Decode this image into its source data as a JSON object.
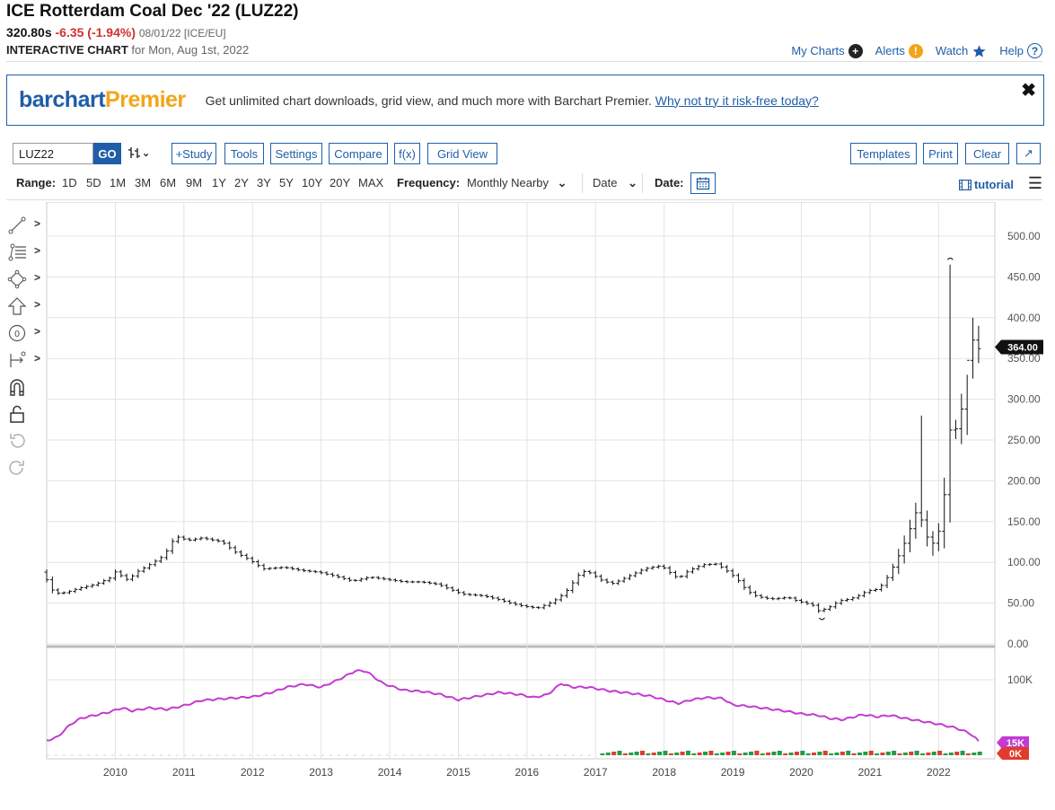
{
  "header": {
    "title": "ICE Rotterdam Coal Dec '22 (LUZ22)",
    "last": "320.80s",
    "change": "-6.35 (-1.94%)",
    "meta": "08/01/22 [ICE/EU]",
    "interactive": "INTERACTIVE CHART",
    "for_date": "for Mon, Aug 1st, 2022"
  },
  "top_links": {
    "my_charts": "My Charts",
    "alerts": "Alerts",
    "watch": "Watch",
    "help": "Help"
  },
  "promo": {
    "logo_a": "barchart",
    "logo_b": "Premier",
    "message": "Get unlimited chart downloads, grid view, and much more with Barchart Premier.",
    "link": "Why not try it risk-free today?",
    "close": "✖"
  },
  "toolbar": {
    "symbol": "LUZ22",
    "go": "GO",
    "study": "+Study",
    "tools": "Tools",
    "settings": "Settings",
    "compare": "Compare",
    "fx": "f(x)",
    "grid_view": "Grid View",
    "templates": "Templates",
    "print": "Print",
    "clear": "Clear",
    "expand": "↗"
  },
  "range": {
    "label": "Range:",
    "options": [
      "1D",
      "5D",
      "1M",
      "3M",
      "6M",
      "9M",
      "1Y",
      "2Y",
      "3Y",
      "5Y",
      "10Y",
      "20Y",
      "MAX"
    ],
    "frequency_label": "Frequency:",
    "frequency_value": "Monthly Nearby",
    "date_select": "Date",
    "date_label": "Date:",
    "tutorial": "tutorial"
  },
  "colors": {
    "accent": "#1f5ea8",
    "negative": "#d32f2f",
    "open_interest": "#c33bd1",
    "volume_up": "#1f9d47",
    "volume_down": "#e23b2e",
    "promo_gold": "#f2a51a"
  },
  "tool_icons": [
    "line-draw-icon",
    "fib-icon",
    "shape-icon",
    "arrow-icon",
    "label-icon",
    "measure-icon",
    "magnet-icon",
    "lock-icon",
    "undo-icon",
    "redo-icon"
  ],
  "chart_data": {
    "type": "line",
    "chart_style": "OHLC monthly bars",
    "price_axis": {
      "ticks": [
        "500.00",
        "450.00",
        "400.00",
        "350.00",
        "300.00",
        "250.00",
        "200.00",
        "150.00",
        "100.00",
        "50.00",
        "0.00"
      ],
      "ylim": [
        0,
        500
      ]
    },
    "x_ticks": [
      "2010",
      "2011",
      "2012",
      "2013",
      "2014",
      "2015",
      "2016",
      "2017",
      "2018",
      "2019",
      "2020",
      "2021",
      "2022"
    ],
    "xlim": [
      2009.0,
      2022.82
    ],
    "current_label": "364.00",
    "price_anchors": [
      [
        2009.0,
        88
      ],
      [
        2009.08,
        70
      ],
      [
        2009.17,
        62
      ],
      [
        2009.33,
        63
      ],
      [
        2009.5,
        68
      ],
      [
        2009.75,
        73
      ],
      [
        2010.0,
        82
      ],
      [
        2010.08,
        94
      ],
      [
        2010.15,
        78
      ],
      [
        2010.25,
        80
      ],
      [
        2010.35,
        88
      ],
      [
        2010.5,
        95
      ],
      [
        2010.75,
        108
      ],
      [
        2010.92,
        132
      ],
      [
        2011.1,
        127
      ],
      [
        2011.3,
        130
      ],
      [
        2011.6,
        125
      ],
      [
        2011.8,
        112
      ],
      [
        2012.0,
        103
      ],
      [
        2012.2,
        92
      ],
      [
        2012.5,
        94
      ],
      [
        2012.75,
        90
      ],
      [
        2013.0,
        88
      ],
      [
        2013.25,
        83
      ],
      [
        2013.5,
        77
      ],
      [
        2013.75,
        82
      ],
      [
        2014.0,
        79
      ],
      [
        2014.25,
        76
      ],
      [
        2014.5,
        76
      ],
      [
        2014.75,
        73
      ],
      [
        2014.92,
        67
      ],
      [
        2015.1,
        61
      ],
      [
        2015.4,
        59
      ],
      [
        2015.6,
        55
      ],
      [
        2015.8,
        50
      ],
      [
        2016.0,
        46
      ],
      [
        2016.2,
        44
      ],
      [
        2016.35,
        49
      ],
      [
        2016.5,
        56
      ],
      [
        2016.62,
        65
      ],
      [
        2016.8,
        85
      ],
      [
        2016.9,
        90
      ],
      [
        2017.0,
        85
      ],
      [
        2017.15,
        77
      ],
      [
        2017.3,
        74
      ],
      [
        2017.5,
        82
      ],
      [
        2017.75,
        92
      ],
      [
        2018.0,
        96
      ],
      [
        2018.1,
        89
      ],
      [
        2018.25,
        80
      ],
      [
        2018.4,
        90
      ],
      [
        2018.6,
        97
      ],
      [
        2018.8,
        98
      ],
      [
        2018.92,
        92
      ],
      [
        2019.1,
        80
      ],
      [
        2019.25,
        65
      ],
      [
        2019.4,
        58
      ],
      [
        2019.6,
        55
      ],
      [
        2019.85,
        57
      ],
      [
        2020.0,
        52
      ],
      [
        2020.2,
        48
      ],
      [
        2020.3,
        40
      ],
      [
        2020.45,
        45
      ],
      [
        2020.6,
        53
      ],
      [
        2020.75,
        55
      ],
      [
        2020.9,
        60
      ],
      [
        2021.0,
        65
      ],
      [
        2021.15,
        67
      ],
      [
        2021.25,
        75
      ],
      [
        2021.35,
        90
      ],
      [
        2021.5,
        115
      ],
      [
        2021.6,
        135
      ],
      [
        2021.7,
        160
      ],
      [
        2021.75,
        165
      ],
      [
        2021.83,
        140
      ],
      [
        2021.92,
        122
      ],
      [
        2022.0,
        125
      ],
      [
        2022.08,
        150
      ],
      [
        2022.12,
        175
      ],
      [
        2022.17,
        255
      ],
      [
        2022.25,
        270
      ],
      [
        2022.33,
        258
      ],
      [
        2022.42,
        318
      ],
      [
        2022.5,
        380
      ],
      [
        2022.6,
        362
      ]
    ],
    "open_interest": {
      "name": "",
      "ticks": [
        "100K"
      ],
      "last_label": "15K",
      "anchors": [
        [
          2009.0,
          18
        ],
        [
          2009.15,
          22
        ],
        [
          2009.35,
          40
        ],
        [
          2009.5,
          48
        ],
        [
          2009.9,
          56
        ],
        [
          2010.1,
          62
        ],
        [
          2010.25,
          58
        ],
        [
          2010.5,
          62
        ],
        [
          2010.75,
          60
        ],
        [
          2011.0,
          65
        ],
        [
          2011.25,
          72
        ],
        [
          2011.5,
          74
        ],
        [
          2012.0,
          77
        ],
        [
          2012.25,
          82
        ],
        [
          2012.5,
          90
        ],
        [
          2012.75,
          94
        ],
        [
          2013.0,
          90
        ],
        [
          2013.25,
          100
        ],
        [
          2013.5,
          112
        ],
        [
          2013.65,
          112
        ],
        [
          2013.9,
          95
        ],
        [
          2014.2,
          86
        ],
        [
          2014.5,
          84
        ],
        [
          2014.75,
          80
        ],
        [
          2015.0,
          73
        ],
        [
          2015.3,
          78
        ],
        [
          2015.6,
          83
        ],
        [
          2015.9,
          80
        ],
        [
          2016.1,
          76
        ],
        [
          2016.3,
          80
        ],
        [
          2016.5,
          95
        ],
        [
          2016.65,
          90
        ],
        [
          2016.9,
          90
        ],
        [
          2017.2,
          85
        ],
        [
          2017.5,
          82
        ],
        [
          2017.8,
          78
        ],
        [
          2018.0,
          73
        ],
        [
          2018.2,
          68
        ],
        [
          2018.4,
          73
        ],
        [
          2018.6,
          76
        ],
        [
          2018.85,
          75
        ],
        [
          2019.0,
          66
        ],
        [
          2019.25,
          64
        ],
        [
          2019.5,
          61
        ],
        [
          2019.75,
          58
        ],
        [
          2020.0,
          54
        ],
        [
          2020.25,
          52
        ],
        [
          2020.4,
          48
        ],
        [
          2020.6,
          46
        ],
        [
          2020.9,
          53
        ],
        [
          2021.1,
          50
        ],
        [
          2021.3,
          52
        ],
        [
          2021.5,
          48
        ],
        [
          2021.75,
          44
        ],
        [
          2022.0,
          40
        ],
        [
          2022.25,
          35
        ],
        [
          2022.45,
          28
        ],
        [
          2022.55,
          20
        ],
        [
          2022.6,
          15
        ]
      ]
    },
    "volume": {
      "last_label": "0K"
    }
  }
}
